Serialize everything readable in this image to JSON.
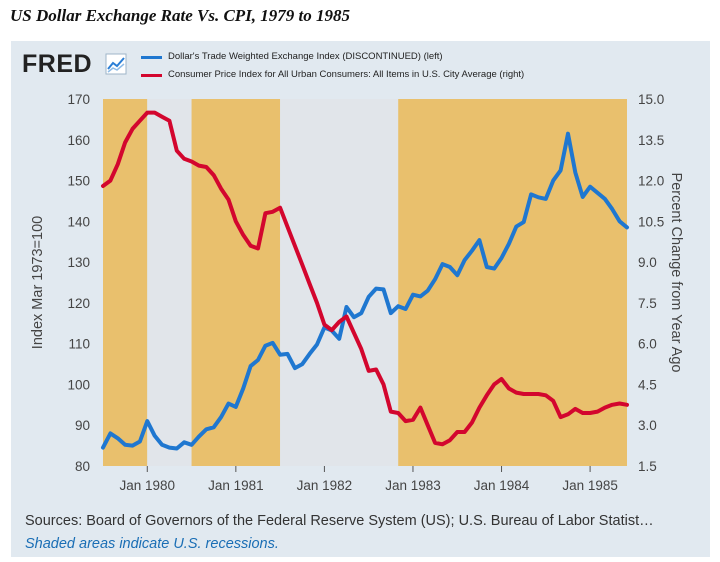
{
  "page": {
    "title": "US Dollar Exchange Rate Vs. CPI, 1979 to 1985"
  },
  "brand": {
    "logo_text": "FRED",
    "icon": "line-chart-icon"
  },
  "colors": {
    "panel_bg": "#e1e9f0",
    "recession_shade": "#e9c06d",
    "plot_bg": "#e1e5ea",
    "exchange_series": "#1f77d0",
    "cpi_series": "#d3062e",
    "note_text": "#1a6eb5"
  },
  "footer": {
    "sources": "Sources: Board of Governors of the Federal Reserve System (US); U.S. Bureau of Labor Statist…",
    "note": "Shaded areas indicate U.S. recessions."
  },
  "chart_data": {
    "type": "line",
    "title": "US Dollar Exchange Rate Vs. CPI, 1979 to 1985",
    "xlabel": "",
    "ylabel_left": "Index Mar 1973=100",
    "ylabel_right": "Percent Change from Year Ago",
    "xlim": [
      "1979-07-01",
      "1985-06-01"
    ],
    "ylim_left": [
      80,
      170
    ],
    "ylim_right": [
      1.5,
      15.0
    ],
    "x_ticks": [
      "Jan 1980",
      "Jan 1981",
      "Jan 1982",
      "Jan 1983",
      "Jan 1984",
      "Jan 1985"
    ],
    "y_ticks_left": [
      "80",
      "90",
      "100",
      "110",
      "120",
      "130",
      "140",
      "150",
      "160",
      "170"
    ],
    "y_ticks_right": [
      "1.5",
      "3.0",
      "4.5",
      "6.0",
      "7.5",
      "9.0",
      "10.5",
      "12.0",
      "13.5",
      "15.0"
    ],
    "grid": false,
    "legend_position": "top",
    "recessions": [
      {
        "start": "1979-07-01",
        "end": "1980-01-01"
      },
      {
        "start": "1980-01-01",
        "end": "1980-07-01",
        "unshaded": true
      },
      {
        "start": "1980-07-01",
        "end": "1981-07-01"
      },
      {
        "start": "1981-07-01",
        "end": "1982-11-01",
        "unshaded": true
      },
      {
        "start": "1982-11-01",
        "end": "1985-06-01"
      }
    ],
    "x": [
      "1979-07",
      "1979-08",
      "1979-09",
      "1979-10",
      "1979-11",
      "1979-12",
      "1980-01",
      "1980-02",
      "1980-03",
      "1980-04",
      "1980-05",
      "1980-06",
      "1980-07",
      "1980-08",
      "1980-09",
      "1980-10",
      "1980-11",
      "1980-12",
      "1981-01",
      "1981-02",
      "1981-03",
      "1981-04",
      "1981-05",
      "1981-06",
      "1981-07",
      "1981-08",
      "1981-09",
      "1981-10",
      "1981-11",
      "1981-12",
      "1982-01",
      "1982-02",
      "1982-03",
      "1982-04",
      "1982-05",
      "1982-06",
      "1982-07",
      "1982-08",
      "1982-09",
      "1982-10",
      "1982-11",
      "1982-12",
      "1983-01",
      "1983-02",
      "1983-03",
      "1983-04",
      "1983-05",
      "1983-06",
      "1983-07",
      "1983-08",
      "1983-09",
      "1983-10",
      "1983-11",
      "1983-12",
      "1984-01",
      "1984-02",
      "1984-03",
      "1984-04",
      "1984-05",
      "1984-06",
      "1984-07",
      "1984-08",
      "1984-09",
      "1984-10",
      "1984-11",
      "1984-12",
      "1985-01",
      "1985-02",
      "1985-03",
      "1985-04",
      "1985-05",
      "1985-06"
    ],
    "series": [
      {
        "name": "Dollar's Trade Weighted Exchange Index (DISCONTINUED) (left)",
        "axis": "left",
        "values": [
          84.5,
          88.0,
          86.8,
          85.2,
          85.0,
          86.0,
          91.0,
          87.4,
          85.2,
          84.5,
          84.3,
          85.8,
          85.2,
          87.2,
          89.0,
          89.5,
          92.0,
          95.3,
          94.5,
          99.0,
          104.5,
          106.0,
          109.5,
          110.2,
          107.3,
          107.5,
          104.0,
          105.0,
          107.5,
          109.8,
          114.0,
          113.2,
          111.2,
          119.0,
          116.5,
          117.5,
          121.5,
          123.5,
          123.3,
          117.5,
          119.2,
          118.5,
          122.0,
          121.6,
          123.0,
          125.8,
          129.5,
          128.8,
          126.8,
          130.5,
          132.8,
          135.4,
          128.8,
          128.4,
          131.0,
          134.5,
          138.7,
          139.8,
          146.6,
          145.9,
          145.5,
          150.0,
          152.5,
          161.5,
          152.0,
          146.0,
          148.5,
          147.0,
          145.5,
          143.0,
          140.0,
          138.5
        ]
      },
      {
        "name": "Consumer Price Index for All Urban Consumers: All Items in U.S. City Average (right)",
        "axis": "right",
        "values": [
          11.8,
          12.0,
          12.6,
          13.4,
          13.9,
          14.2,
          14.5,
          14.5,
          14.35,
          14.2,
          13.1,
          12.8,
          12.7,
          12.55,
          12.5,
          12.2,
          11.7,
          11.3,
          10.5,
          10.0,
          9.6,
          9.5,
          10.8,
          10.85,
          11.0,
          10.3,
          9.6,
          8.9,
          8.2,
          7.5,
          6.7,
          6.5,
          6.8,
          7.0,
          6.4,
          5.8,
          5.0,
          5.05,
          4.5,
          3.5,
          3.45,
          3.15,
          3.2,
          3.65,
          3.0,
          2.35,
          2.3,
          2.45,
          2.75,
          2.75,
          3.1,
          3.65,
          4.1,
          4.5,
          4.7,
          4.35,
          4.2,
          4.15,
          4.15,
          4.15,
          4.1,
          3.9,
          3.3,
          3.4,
          3.6,
          3.45,
          3.45,
          3.5,
          3.65,
          3.75,
          3.8,
          3.75
        ]
      }
    ]
  }
}
